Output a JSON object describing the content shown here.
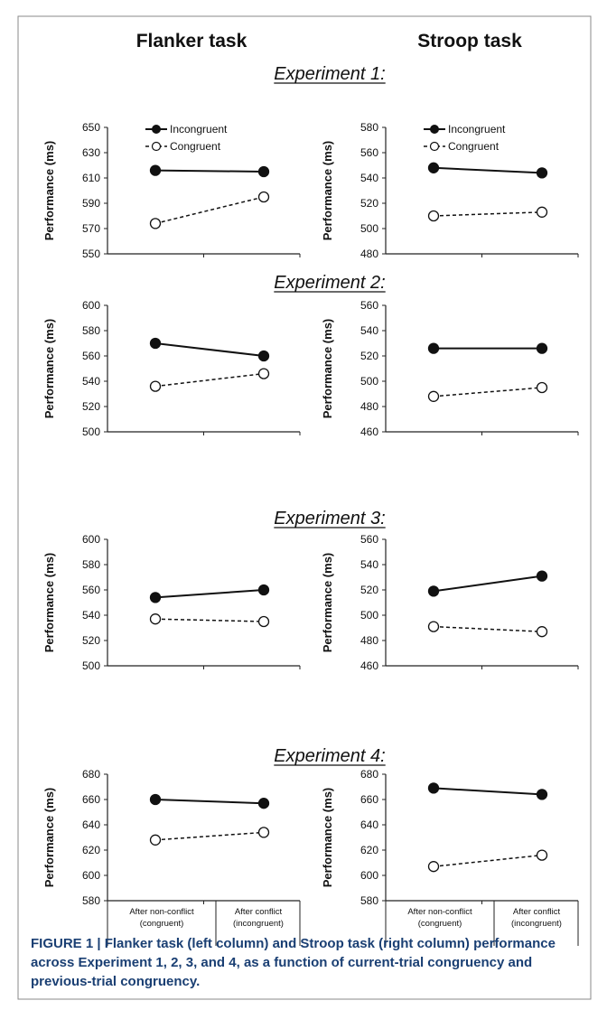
{
  "column_titles": [
    "Flanker task",
    "Stroop task"
  ],
  "y_label": "Performance (ms)",
  "x_categories": [
    [
      "After non-conflict",
      "(congruent)"
    ],
    [
      "After conflict",
      "(incongruent)"
    ]
  ],
  "legend": [
    "Incongruent",
    "Congruent"
  ],
  "caption": "FIGURE 1 | Flanker task (left column) and Stroop task (right column) performance across Experiment 1, 2, 3, and 4, as a function of current-trial congruency and previous-trial congruency.",
  "chart_data": [
    {
      "type": "line",
      "experiment": "Experiment 1:",
      "task": "Flanker task",
      "ylim": [
        550,
        650
      ],
      "yticks": [
        550,
        570,
        590,
        610,
        630,
        650
      ],
      "categories": [
        "After non-conflict (congruent)",
        "After conflict (incongruent)"
      ],
      "series": [
        {
          "name": "Incongruent",
          "values": [
            616,
            615
          ]
        },
        {
          "name": "Congruent",
          "values": [
            574,
            595
          ]
        }
      ],
      "legend": "top-left"
    },
    {
      "type": "line",
      "experiment": "Experiment 1:",
      "task": "Stroop task",
      "ylim": [
        480,
        580
      ],
      "yticks": [
        480,
        500,
        520,
        540,
        560,
        580
      ],
      "categories": [
        "After non-conflict (congruent)",
        "After conflict (incongruent)"
      ],
      "series": [
        {
          "name": "Incongruent",
          "values": [
            548,
            544
          ]
        },
        {
          "name": "Congruent",
          "values": [
            510,
            513
          ]
        }
      ],
      "legend": "top-left"
    },
    {
      "type": "line",
      "experiment": "Experiment 2:",
      "task": "Flanker task",
      "ylim": [
        500,
        600
      ],
      "yticks": [
        500,
        520,
        540,
        560,
        580,
        600
      ],
      "categories": [
        "After non-conflict (congruent)",
        "After conflict (incongruent)"
      ],
      "series": [
        {
          "name": "Incongruent",
          "values": [
            570,
            560
          ]
        },
        {
          "name": "Congruent",
          "values": [
            536,
            546
          ]
        }
      ]
    },
    {
      "type": "line",
      "experiment": "Experiment 2:",
      "task": "Stroop task",
      "ylim": [
        460,
        560
      ],
      "yticks": [
        460,
        480,
        500,
        520,
        540,
        560
      ],
      "categories": [
        "After non-conflict (congruent)",
        "After conflict (incongruent)"
      ],
      "series": [
        {
          "name": "Incongruent",
          "values": [
            526,
            526
          ]
        },
        {
          "name": "Congruent",
          "values": [
            488,
            495
          ]
        }
      ]
    },
    {
      "type": "line",
      "experiment": "Experiment 3:",
      "task": "Flanker task",
      "ylim": [
        500,
        600
      ],
      "yticks": [
        500,
        520,
        540,
        560,
        580,
        600
      ],
      "categories": [
        "After non-conflict (congruent)",
        "After conflict (incongruent)"
      ],
      "series": [
        {
          "name": "Incongruent",
          "values": [
            554,
            560
          ]
        },
        {
          "name": "Congruent",
          "values": [
            537,
            535
          ]
        }
      ]
    },
    {
      "type": "line",
      "experiment": "Experiment 3:",
      "task": "Stroop task",
      "ylim": [
        460,
        560
      ],
      "yticks": [
        460,
        480,
        500,
        520,
        540,
        560
      ],
      "categories": [
        "After non-conflict (congruent)",
        "After conflict (incongruent)"
      ],
      "series": [
        {
          "name": "Incongruent",
          "values": [
            519,
            531
          ]
        },
        {
          "name": "Congruent",
          "values": [
            491,
            487
          ]
        }
      ]
    },
    {
      "type": "line",
      "experiment": "Experiment 4:",
      "task": "Flanker task",
      "ylim": [
        580,
        680
      ],
      "yticks": [
        580,
        600,
        620,
        640,
        660,
        680
      ],
      "categories": [
        "After non-conflict (congruent)",
        "After conflict (incongruent)"
      ],
      "series": [
        {
          "name": "Incongruent",
          "values": [
            660,
            657
          ]
        },
        {
          "name": "Congruent",
          "values": [
            628,
            634
          ]
        }
      ]
    },
    {
      "type": "line",
      "experiment": "Experiment 4:",
      "task": "Stroop task",
      "ylim": [
        580,
        680
      ],
      "yticks": [
        580,
        600,
        620,
        640,
        660,
        680
      ],
      "categories": [
        "After non-conflict (congruent)",
        "After conflict (incongruent)"
      ],
      "series": [
        {
          "name": "Incongruent",
          "values": [
            669,
            664
          ]
        },
        {
          "name": "Congruent",
          "values": [
            607,
            616
          ]
        }
      ]
    }
  ]
}
